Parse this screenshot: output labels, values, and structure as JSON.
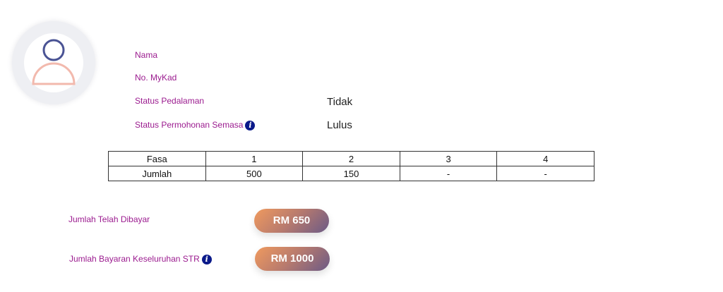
{
  "profile": {
    "fields": [
      {
        "label": "Nama",
        "value": ""
      },
      {
        "label": "No. MyKad",
        "value": ""
      },
      {
        "label": "Status Pedalaman",
        "value": "Tidak"
      },
      {
        "label": "Status Permohonan Semasa",
        "value": "Lulus",
        "icon": "info-icon"
      }
    ]
  },
  "table": {
    "header": [
      "Fasa",
      "1",
      "2",
      "3",
      "4"
    ],
    "row": [
      "Jumlah",
      "500",
      "150",
      "-",
      "-"
    ]
  },
  "payments": {
    "paid_label": "Jumlah Telah Dibayar",
    "paid_value": "RM 650",
    "total_label": "Jumlah Bayaran Keseluruhan STR",
    "total_value": "RM 1000",
    "info_glyph": "i"
  },
  "colors": {
    "label": "#9b1b8f",
    "info": "#0b1a8a",
    "avatar_head": "#4a5394",
    "avatar_body": "#f2b9ad"
  }
}
